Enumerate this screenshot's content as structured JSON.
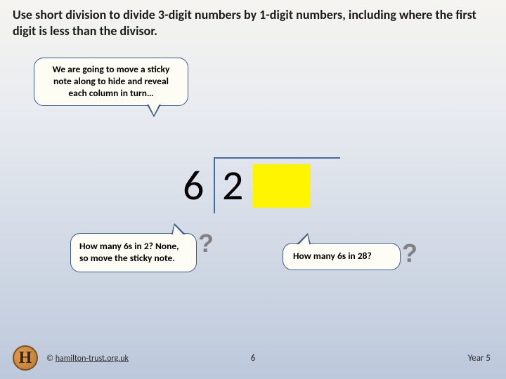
{
  "heading": "Use short division to divide 3-digit numbers by 1-digit numbers, including where the first digit is less than the divisor.",
  "bubble1": "We are going to move a sticky note along to hide and reveal each column in turn…",
  "bubble2": "How many 6s in 2? None, so move the sticky note.",
  "bubble3": "How many 6s in 28?",
  "division": {
    "divisor": "6",
    "dividend_visible": "2",
    "sticky_color": "#fff500",
    "bracket_color": "#4a6a9a"
  },
  "qmarks": {
    "q1": "?",
    "q2": "?"
  },
  "footer": {
    "logo_letter": "H",
    "copyright_prefix": "© ",
    "copyright_link": "hamilton-trust.org.uk",
    "page_number": "6",
    "year_label": "Year 5"
  }
}
